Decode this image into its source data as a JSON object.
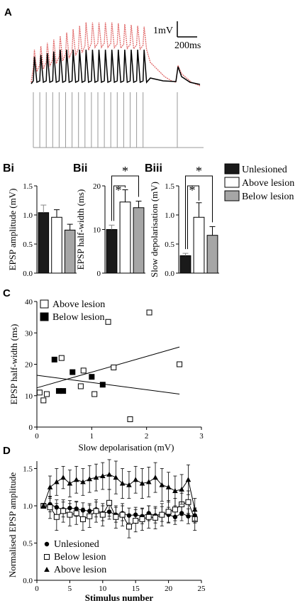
{
  "panels": {
    "A": "A",
    "Bi": "Bi",
    "Bii": "Bii",
    "Biii": "Biii",
    "C": "C",
    "D": "D"
  },
  "colors": {
    "unlesioned": "#1a1a1a",
    "above": "#ffffff",
    "below": "#a6a6a6",
    "trace_red": "#e06666",
    "trace_black": "#000000",
    "stim": "#9a9a9a"
  },
  "scalebar": {
    "amplitude": "1mV",
    "time": "200ms"
  },
  "legend_B": [
    "Unlesioned",
    "Above lesion",
    "Below lesion"
  ],
  "significance_mark": "*",
  "chart_data": [
    {
      "id": "Bi",
      "type": "bar",
      "categories": [
        "Unlesioned",
        "Above lesion",
        "Below lesion"
      ],
      "values": [
        1.04,
        0.96,
        0.74
      ],
      "errors": [
        0.13,
        0.13,
        0.1
      ],
      "ylabel": "EPSP amplitude (mV)",
      "ylim": [
        0,
        1.5
      ],
      "yticks": [
        "0.0",
        "0.5",
        "1.0",
        "1.5"
      ]
    },
    {
      "id": "Bii",
      "type": "bar",
      "categories": [
        "Unlesioned",
        "Above lesion",
        "Below lesion"
      ],
      "values": [
        10.0,
        16.3,
        15.0
      ],
      "errors": [
        1.0,
        2.8,
        1.5
      ],
      "ylabel": "EPSP half-width (ms)",
      "ylim": [
        0,
        20
      ],
      "yticks": [
        "0",
        "10",
        "20"
      ],
      "significance": [
        "*",
        "*"
      ]
    },
    {
      "id": "Biii",
      "type": "bar",
      "categories": [
        "Unlesioned",
        "Above lesion",
        "Below lesion"
      ],
      "values": [
        0.3,
        0.96,
        0.65
      ],
      "errors": [
        0.04,
        0.25,
        0.15
      ],
      "ylabel": "Slow depolarisation (mV)",
      "ylim": [
        0,
        1.5
      ],
      "yticks": [
        "0.0",
        "0.5",
        "1.0",
        "1.5"
      ],
      "significance": [
        "*",
        "*"
      ]
    },
    {
      "id": "C",
      "type": "scatter",
      "xlabel": "Slow depolarisation (mV)",
      "ylabel": "EPSP half-width (ms)",
      "xlim": [
        0,
        3
      ],
      "ylim": [
        0,
        40
      ],
      "xticks": [
        "0",
        "1",
        "2",
        "3"
      ],
      "yticks": [
        "0",
        "10",
        "20",
        "30",
        "40"
      ],
      "series": [
        {
          "name": "Above lesion",
          "marker": "open-square",
          "points": [
            [
              0.05,
              11
            ],
            [
              0.12,
              8.5
            ],
            [
              0.18,
              10.5
            ],
            [
              0.45,
              22
            ],
            [
              0.8,
              13
            ],
            [
              0.85,
              18
            ],
            [
              1.05,
              10.5
            ],
            [
              1.3,
              33.5
            ],
            [
              1.4,
              19
            ],
            [
              1.7,
              2.5
            ],
            [
              2.05,
              36.5
            ],
            [
              2.6,
              20
            ]
          ]
        },
        {
          "name": "Below lesion",
          "marker": "filled-square",
          "points": [
            [
              0.32,
              21.5
            ],
            [
              0.4,
              11.5
            ],
            [
              0.48,
              11.5
            ],
            [
              0.65,
              17.5
            ],
            [
              1.0,
              16
            ],
            [
              1.2,
              13.5
            ]
          ]
        }
      ],
      "fits": [
        {
          "series": "Above lesion",
          "x": [
            0,
            2.6
          ],
          "y": [
            12.5,
            25.5
          ]
        },
        {
          "series": "Below lesion",
          "x": [
            0,
            2.6
          ],
          "y": [
            16.5,
            10.5
          ]
        }
      ]
    },
    {
      "id": "D",
      "type": "line",
      "xlabel": "Stimulus number",
      "ylabel": "Normalised EPSP amplitude",
      "xlim": [
        0,
        25
      ],
      "ylim": [
        0,
        1.6
      ],
      "xticks": [
        "0",
        "5",
        "10",
        "15",
        "20",
        "25"
      ],
      "yticks": [
        "0.0",
        "0.5",
        "1.0",
        "1.5"
      ],
      "x": [
        1,
        2,
        3,
        4,
        5,
        6,
        7,
        8,
        9,
        10,
        11,
        12,
        13,
        14,
        15,
        16,
        17,
        18,
        19,
        20,
        21,
        22,
        23,
        24
      ],
      "series": [
        {
          "name": "Unlesioned",
          "marker": "filled-circle",
          "values": [
            1.0,
            1.02,
            0.98,
            0.95,
            0.97,
            0.96,
            0.94,
            0.93,
            0.95,
            0.9,
            0.92,
            0.88,
            0.9,
            0.87,
            0.88,
            0.86,
            0.9,
            0.87,
            0.89,
            0.88,
            0.85,
            0.9,
            0.86,
            0.87
          ],
          "errors": [
            0.02,
            0.1,
            0.1,
            0.1,
            0.1,
            0.1,
            0.1,
            0.1,
            0.1,
            0.1,
            0.1,
            0.1,
            0.1,
            0.1,
            0.1,
            0.1,
            0.1,
            0.1,
            0.1,
            0.1,
            0.1,
            0.1,
            0.1,
            0.1
          ]
        },
        {
          "name": "Below lesion",
          "marker": "open-square",
          "values": [
            1.0,
            0.98,
            0.85,
            0.93,
            0.88,
            0.9,
            0.82,
            0.86,
            0.93,
            0.88,
            1.04,
            0.85,
            0.88,
            0.72,
            0.8,
            0.82,
            0.85,
            0.84,
            0.88,
            0.92,
            0.95,
            1.02,
            1.05,
            0.82
          ],
          "errors": [
            0.02,
            0.15,
            0.18,
            0.15,
            0.15,
            0.15,
            0.15,
            0.15,
            0.15,
            0.15,
            0.18,
            0.15,
            0.15,
            0.15,
            0.15,
            0.15,
            0.15,
            0.15,
            0.15,
            0.15,
            0.15,
            0.15,
            0.15,
            0.15
          ]
        },
        {
          "name": "Above lesion",
          "marker": "filled-triangle",
          "values": [
            1.0,
            1.25,
            1.32,
            1.38,
            1.3,
            1.35,
            1.32,
            1.36,
            1.38,
            1.4,
            1.42,
            1.38,
            1.3,
            1.28,
            1.35,
            1.3,
            1.32,
            1.38,
            1.28,
            1.25,
            1.2,
            1.22,
            1.35,
            0.95
          ],
          "errors": [
            0.02,
            0.15,
            0.18,
            0.15,
            0.18,
            0.18,
            0.18,
            0.18,
            0.18,
            0.18,
            0.2,
            0.22,
            0.2,
            0.18,
            0.18,
            0.2,
            0.2,
            0.2,
            0.22,
            0.2,
            0.2,
            0.2,
            0.2,
            0.15
          ]
        }
      ]
    }
  ]
}
